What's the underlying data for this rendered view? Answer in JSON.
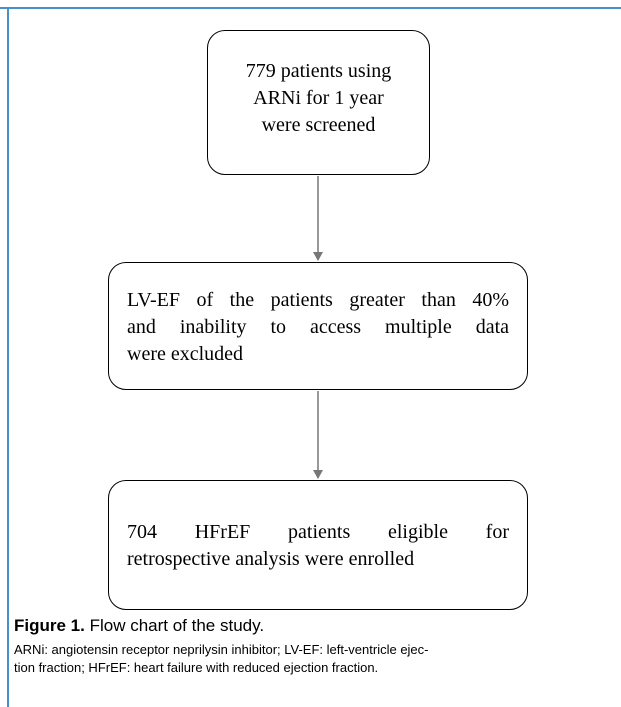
{
  "nodes": [
    {
      "lines": [
        "779 patients using",
        "ARNi for 1 year",
        "were screened"
      ]
    },
    {
      "lines": [
        "LV-EF of the patients greater than 40%",
        "and inability to access multiple data",
        "were excluded"
      ]
    },
    {
      "lines": [
        "704 HFrEF patients eligible for",
        "retrospective analysis were enrolled"
      ]
    }
  ],
  "caption": {
    "label": "Figure 1.",
    "title": "Flow chart of the study.",
    "note_lines": [
      "ARNi: angiotensin receptor neprilysin inhibitor; LV-EF: left-ventricle ejec-",
      "tion fraction; HFrEF: heart failure with reduced ejection fraction."
    ]
  }
}
